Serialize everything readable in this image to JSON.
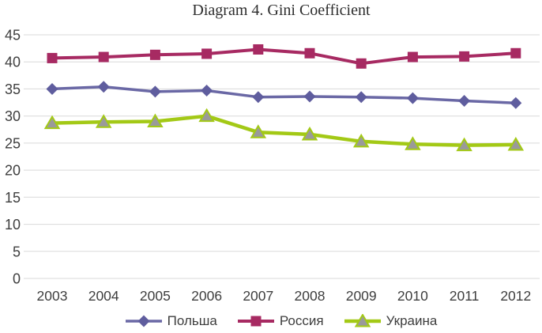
{
  "chart_data": {
    "type": "line",
    "title": "Diagram 4. Gini Coefficient",
    "categories": [
      "2003",
      "2004",
      "2005",
      "2006",
      "2007",
      "2008",
      "2009",
      "2010",
      "2011",
      "2012"
    ],
    "series": [
      {
        "name": "Польша",
        "marker": "diamond",
        "color": "#6A68A5",
        "marker_color": "#5F5D9E",
        "values": [
          35.0,
          35.4,
          34.5,
          34.7,
          33.5,
          33.6,
          33.5,
          33.3,
          32.8,
          32.4
        ]
      },
      {
        "name": "Россия",
        "marker": "square",
        "color": "#A72A62",
        "marker_color": "#A72A62",
        "values": [
          40.7,
          40.9,
          41.3,
          41.5,
          42.3,
          41.6,
          39.7,
          40.9,
          41.0,
          41.6
        ]
      },
      {
        "name": "Украина",
        "marker": "triangle",
        "color": "#A3C916",
        "marker_color": "#9A9A9A",
        "values": [
          28.7,
          28.9,
          29.0,
          30.0,
          27.0,
          26.6,
          25.3,
          24.8,
          24.6,
          24.7
        ]
      }
    ],
    "ylim": [
      0,
      45
    ],
    "ytick_step": 5,
    "yticks": [
      0,
      5,
      10,
      15,
      20,
      25,
      30,
      35,
      40,
      45
    ],
    "xlabel": "",
    "ylabel": "",
    "grid": "horizontal",
    "gridline_color": "#D9D9D9",
    "legend_position": "bottom"
  }
}
